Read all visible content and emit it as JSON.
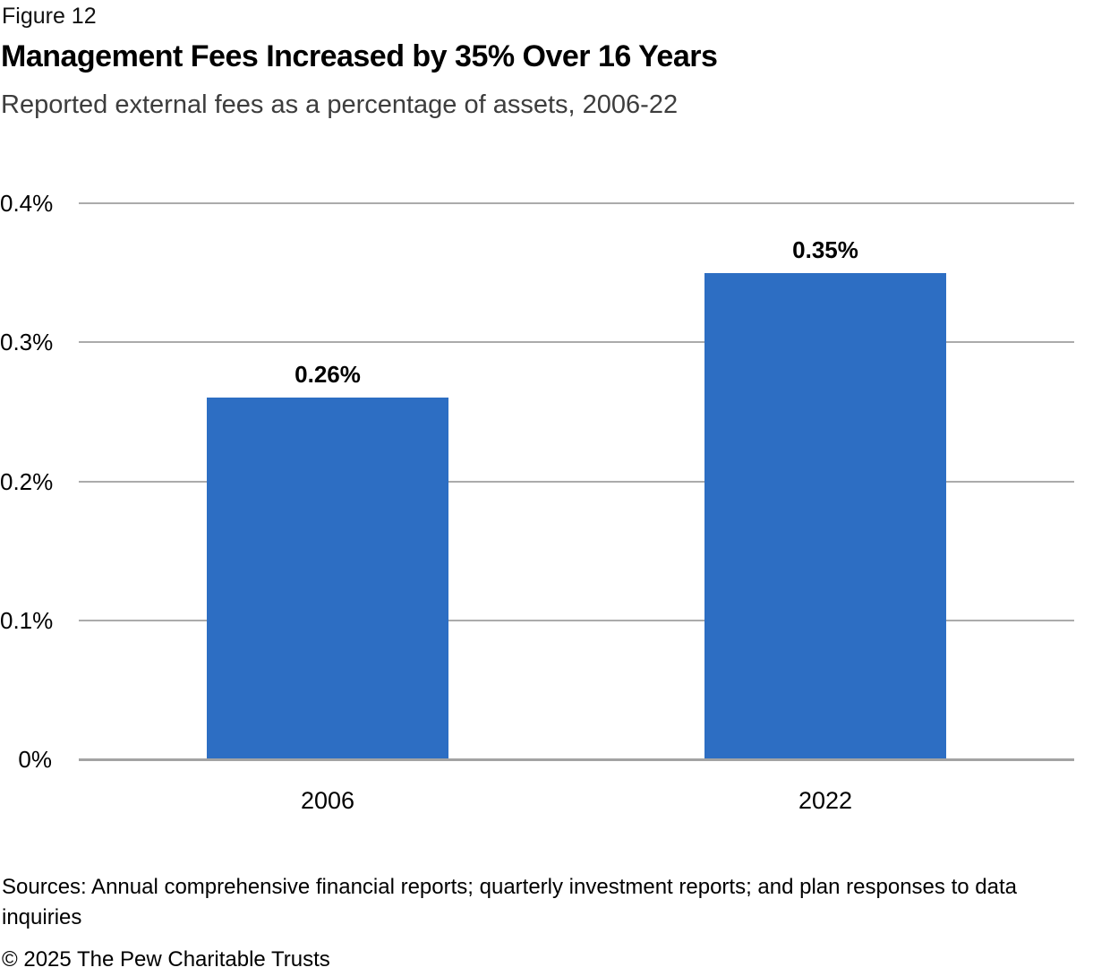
{
  "figure": {
    "label": "Figure 12",
    "title": "Management Fees Increased by 35% Over 16 Years",
    "subtitle": "Reported external fees as a percentage of assets, 2006-22"
  },
  "chart_data": {
    "type": "bar",
    "categories": [
      "2006",
      "2022"
    ],
    "values": [
      0.26,
      0.35
    ],
    "data_labels": [
      "0.26%",
      "0.35%"
    ],
    "title": "Management Fees Increased by 35% Over 16 Years",
    "xlabel": "",
    "ylabel": "Reported external fees as a percentage of assets",
    "ylim": [
      0,
      0.4
    ],
    "yticks": [
      {
        "value": 0,
        "label": "0%"
      },
      {
        "value": 0.1,
        "label": "0.1%"
      },
      {
        "value": 0.2,
        "label": "0.2%"
      },
      {
        "value": 0.3,
        "label": "0.3%"
      },
      {
        "value": 0.4,
        "label": "0.4%"
      }
    ],
    "grid": true,
    "legend": false
  },
  "footer": {
    "sources": "Sources: Annual comprehensive financial reports; quarterly investment reports; and plan responses to data inquiries",
    "copyright": "© 2025 The Pew Charitable Trusts"
  },
  "colors": {
    "bar": "#2D6EC3",
    "gridline": "#ABABAB",
    "axis_line": "#A3A3A3",
    "subtitle_text": "#3D3D3D",
    "text": "#000000"
  }
}
